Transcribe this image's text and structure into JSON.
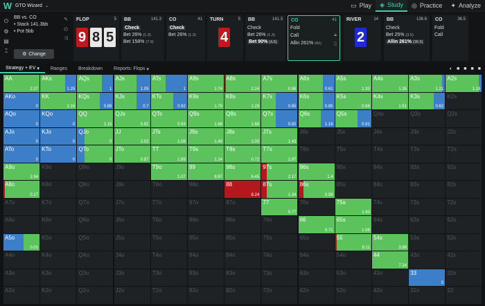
{
  "app": {
    "name": "GTO Wizard"
  },
  "nav": [
    {
      "label": "Play",
      "icon": "play-icon",
      "active": false
    },
    {
      "label": "Study",
      "icon": "study-icon",
      "active": true
    },
    {
      "label": "Practice",
      "icon": "practice-icon",
      "active": false
    },
    {
      "label": "Analyze",
      "icon": "analyze-icon",
      "active": false
    }
  ],
  "spot": {
    "title": "BB vs. CO",
    "stack": "• Stack 141.3bb",
    "pot": "• Pot 5bb",
    "change": "Change"
  },
  "streets": {
    "flop": {
      "title": "FLOP",
      "num": "5",
      "cards": [
        "9",
        "8",
        "5"
      ]
    },
    "bb1": {
      "title": "BB",
      "num": "141.3",
      "actions": [
        {
          "label": "Check",
          "extra": "",
          "sel": true
        },
        {
          "label": "Bet 26%",
          "extra": "(1.3)",
          "sel": false
        },
        {
          "label": "Bet 158%",
          "extra": "(7.9)",
          "sel": false
        }
      ]
    },
    "co1": {
      "title": "CO",
      "num": "41",
      "actions": [
        {
          "label": "Check",
          "extra": "",
          "sel": true
        },
        {
          "label": "Bet 26%",
          "extra": "(1.3)",
          "sel": false
        }
      ]
    },
    "turn": {
      "title": "TURN",
      "num": "5",
      "card": "4"
    },
    "bb2": {
      "title": "BB",
      "num": "141.3",
      "actions": [
        {
          "label": "Check",
          "extra": "",
          "sel": false
        },
        {
          "label": "Bet 26%",
          "extra": "(1.3)",
          "sel": false
        },
        {
          "label": "Bet 90%",
          "extra": "(4.5)",
          "sel": true
        }
      ]
    },
    "co2": {
      "title": "CO",
      "num": "41",
      "actions": [
        {
          "label": "Fold",
          "extra": "",
          "sel": false
        },
        {
          "label": "Call",
          "extra": "",
          "sel": false
        },
        {
          "label": "Allin 261%",
          "extra": "(41)",
          "sel": false
        }
      ]
    },
    "river": {
      "title": "RIVER",
      "num": "14",
      "card": "2"
    },
    "bb3": {
      "title": "BB",
      "num": "136.8",
      "actions": [
        {
          "label": "Check",
          "extra": "",
          "sel": false
        },
        {
          "label": "Bet 25%",
          "extra": "(3.5)",
          "sel": false
        },
        {
          "label": "Allin 261%",
          "extra": "(36.5)",
          "sel": true
        }
      ]
    },
    "co3": {
      "title": "CO",
      "num": "36.5",
      "actions": [
        {
          "label": "Fold",
          "extra": "",
          "sel": false
        },
        {
          "label": "Call",
          "extra": "",
          "sel": false
        }
      ]
    }
  },
  "tabs": [
    "Strategy + EV",
    "Ranges",
    "Breakdown",
    "Reports: Flops"
  ],
  "colors": {
    "green": "#5bc25c",
    "blue": "#3d7ec8",
    "red": "#b4181c"
  },
  "grid": [
    [
      [
        "AA",
        "2.27",
        "g"
      ],
      [
        "AKs",
        "1.25",
        "b2"
      ],
      [
        "AQs",
        "1",
        "b2"
      ],
      [
        "AJs",
        "1.05",
        "b1"
      ],
      [
        "ATs",
        "1",
        "b3"
      ],
      [
        "A9s",
        "1.74",
        "g"
      ],
      [
        "A8s",
        "2.24",
        "gR"
      ],
      [
        "A7s",
        "0.56",
        "g"
      ],
      [
        "A6s",
        "0.61",
        "b2"
      ],
      [
        "A5s",
        "1.33",
        "g"
      ],
      [
        "A4s",
        "1.35",
        "g"
      ],
      [
        "A3s",
        "1.21",
        "gb"
      ],
      [
        "A2s",
        "1.19",
        "gb"
      ]
    ],
    [
      [
        "AKo",
        "0",
        "b"
      ],
      [
        "KK",
        "2.16",
        "g"
      ],
      [
        "KQs",
        "0.89",
        "b1"
      ],
      [
        "KJs",
        "0.7",
        "b1"
      ],
      [
        "KTs",
        "0.92",
        "b1"
      ],
      [
        "K9s",
        "1.76",
        "g"
      ],
      [
        "K8s",
        "1.29",
        "g"
      ],
      [
        "K7s",
        "0.65",
        "b3"
      ],
      [
        "K6s",
        "0.85",
        "b2"
      ],
      [
        "K5s",
        "0.98",
        "g"
      ],
      [
        "K4s",
        "1.51",
        "g"
      ],
      [
        "K3s",
        "0.62",
        "b2"
      ],
      [
        "K2s",
        "",
        "e"
      ]
    ],
    [
      [
        "AQo",
        "0",
        "b"
      ],
      [
        "KQo",
        "0",
        "b"
      ],
      [
        "QQ",
        "2.15",
        "g"
      ],
      [
        "QJs",
        "0.82",
        "g"
      ],
      [
        "QTs",
        "0.93",
        "g"
      ],
      [
        "Q9s",
        "1.68",
        "g"
      ],
      [
        "Q8s",
        "1.68",
        "g"
      ],
      [
        "Q7s",
        "0.92",
        "b3"
      ],
      [
        "Q6s",
        "1.16",
        "b1"
      ],
      [
        "Q5s",
        "0.91",
        "b1"
      ],
      [
        "Q4s",
        "",
        "e"
      ],
      [
        "Q3s",
        "",
        "e"
      ],
      [
        "Q2s",
        "",
        "e"
      ]
    ],
    [
      [
        "AJo",
        "0",
        "b"
      ],
      [
        "KJo",
        "0",
        "b"
      ],
      [
        "QJo",
        "0",
        "b4"
      ],
      [
        "JJ",
        "2.02",
        "g"
      ],
      [
        "JTs",
        "1.08",
        "g"
      ],
      [
        "J9s",
        "1.49",
        "g"
      ],
      [
        "J8s",
        "1.03",
        "g"
      ],
      [
        "J7s",
        "1.43",
        "g"
      ],
      [
        "J6s",
        "",
        "e"
      ],
      [
        "J5s",
        "",
        "e"
      ],
      [
        "J4s",
        "",
        "e"
      ],
      [
        "J3s",
        "",
        "e"
      ],
      [
        "J2s",
        "",
        "e"
      ]
    ],
    [
      [
        "ATo",
        "0",
        "b"
      ],
      [
        "KTo",
        "0",
        "b"
      ],
      [
        "QTo",
        "0",
        "b4"
      ],
      [
        "JTo",
        "0.87",
        "g"
      ],
      [
        "TT",
        "1.89",
        "g"
      ],
      [
        "T9s",
        "1.14",
        "g"
      ],
      [
        "T8s",
        "0.72",
        "g"
      ],
      [
        "T7s",
        "1.97",
        "g"
      ],
      [
        "T6s",
        "",
        "e"
      ],
      [
        "T5s",
        "",
        "e"
      ],
      [
        "T4s",
        "",
        "e"
      ],
      [
        "T3s",
        "",
        "e"
      ],
      [
        "T2s",
        "",
        "e"
      ]
    ],
    [
      [
        "A9o",
        "1.94",
        "g"
      ],
      [
        "K9o",
        "",
        "e"
      ],
      [
        "Q9o",
        "",
        "e"
      ],
      [
        "J9o",
        "",
        "e"
      ],
      [
        "T9o",
        "1.07",
        "g"
      ],
      [
        "99",
        "8.87",
        "g"
      ],
      [
        "98s",
        "6.45",
        "g"
      ],
      [
        "97s",
        "2.17",
        "gRs"
      ],
      [
        "96s",
        "1.4",
        "g"
      ],
      [
        "95s",
        "",
        "e"
      ],
      [
        "94s",
        "",
        "e"
      ],
      [
        "93s",
        "",
        "e"
      ],
      [
        "92s",
        "",
        "e"
      ]
    ],
    [
      [
        "A8o",
        "0.17",
        "gR"
      ],
      [
        "K8o",
        "",
        "e"
      ],
      [
        "Q8o",
        "",
        "e"
      ],
      [
        "J8o",
        "",
        "e"
      ],
      [
        "T8o",
        "",
        "e"
      ],
      [
        "98o",
        "",
        "e"
      ],
      [
        "88",
        "8.24",
        "R"
      ],
      [
        "87s",
        "1.34",
        "gRs"
      ],
      [
        "86s",
        "0.99",
        "gRs"
      ],
      [
        "85s",
        "",
        "e"
      ],
      [
        "84s",
        "",
        "e"
      ],
      [
        "83s",
        "",
        "e"
      ],
      [
        "82s",
        "",
        "e"
      ]
    ],
    [
      [
        "A7o",
        "",
        "e"
      ],
      [
        "K7o",
        "",
        "e"
      ],
      [
        "Q7o",
        "",
        "e"
      ],
      [
        "J7o",
        "",
        "e"
      ],
      [
        "T7o",
        "",
        "e"
      ],
      [
        "97o",
        "",
        "e"
      ],
      [
        "87o",
        "",
        "e"
      ],
      [
        "77",
        "0.77",
        "gh"
      ],
      [
        "76s",
        "",
        "e"
      ],
      [
        "75s",
        "1.43",
        "gh"
      ],
      [
        "74s",
        "",
        "e"
      ],
      [
        "73s",
        "",
        "e"
      ],
      [
        "72s",
        "",
        "e"
      ]
    ],
    [
      [
        "A6o",
        "",
        "e"
      ],
      [
        "K6o",
        "",
        "e"
      ],
      [
        "Q6o",
        "",
        "e"
      ],
      [
        "J6o",
        "",
        "e"
      ],
      [
        "T6o",
        "",
        "e"
      ],
      [
        "96o",
        "",
        "e"
      ],
      [
        "86o",
        "",
        "e"
      ],
      [
        "76o",
        "",
        "e"
      ],
      [
        "66",
        "0.71",
        "g"
      ],
      [
        "65s",
        "1.08",
        "g"
      ],
      [
        "64s",
        "",
        "e"
      ],
      [
        "63s",
        "",
        "e"
      ],
      [
        "62s",
        "",
        "e"
      ]
    ],
    [
      [
        "A5o",
        "0.01",
        "bS"
      ],
      [
        "K5o",
        "",
        "e"
      ],
      [
        "Q5o",
        "",
        "e"
      ],
      [
        "J5o",
        "",
        "e"
      ],
      [
        "T5o",
        "",
        "e"
      ],
      [
        "95o",
        "",
        "e"
      ],
      [
        "85o",
        "",
        "e"
      ],
      [
        "75o",
        "",
        "e"
      ],
      [
        "65o",
        "",
        "e"
      ],
      [
        "55",
        "8.11",
        "gR2"
      ],
      [
        "54s",
        "3.86",
        "g"
      ],
      [
        "53s",
        "",
        "e"
      ],
      [
        "52s",
        "",
        "e"
      ]
    ],
    [
      [
        "A4o",
        "",
        "e"
      ],
      [
        "K4o",
        "",
        "e"
      ],
      [
        "Q4o",
        "",
        "e"
      ],
      [
        "J4o",
        "",
        "e"
      ],
      [
        "T4o",
        "",
        "e"
      ],
      [
        "94o",
        "",
        "e"
      ],
      [
        "84o",
        "",
        "e"
      ],
      [
        "74o",
        "",
        "e"
      ],
      [
        "64o",
        "",
        "e"
      ],
      [
        "54o",
        "",
        "e"
      ],
      [
        "44",
        "7.24",
        "g"
      ],
      [
        "43s",
        "",
        "e"
      ],
      [
        "42s",
        "",
        "e"
      ]
    ],
    [
      [
        "A3o",
        "",
        "e"
      ],
      [
        "K3o",
        "",
        "e"
      ],
      [
        "Q3o",
        "",
        "e"
      ],
      [
        "J3o",
        "",
        "e"
      ],
      [
        "T3o",
        "",
        "e"
      ],
      [
        "93o",
        "",
        "e"
      ],
      [
        "83o",
        "",
        "e"
      ],
      [
        "73o",
        "",
        "e"
      ],
      [
        "63o",
        "",
        "e"
      ],
      [
        "53o",
        "",
        "e"
      ],
      [
        "43o",
        "",
        "e"
      ],
      [
        "33",
        "0",
        "b"
      ],
      [
        "32s",
        "",
        "e"
      ]
    ],
    [
      [
        "A2o",
        "",
        "e"
      ],
      [
        "K2o",
        "",
        "e"
      ],
      [
        "Q2o",
        "",
        "e"
      ],
      [
        "J2o",
        "",
        "e"
      ],
      [
        "T2o",
        "",
        "e"
      ],
      [
        "92o",
        "",
        "e"
      ],
      [
        "82o",
        "",
        "e"
      ],
      [
        "72o",
        "",
        "e"
      ],
      [
        "62o",
        "",
        "e"
      ],
      [
        "52o",
        "",
        "e"
      ],
      [
        "42o",
        "",
        "e"
      ],
      [
        "32o",
        "",
        "e"
      ],
      [
        "22",
        "",
        "e"
      ]
    ]
  ]
}
